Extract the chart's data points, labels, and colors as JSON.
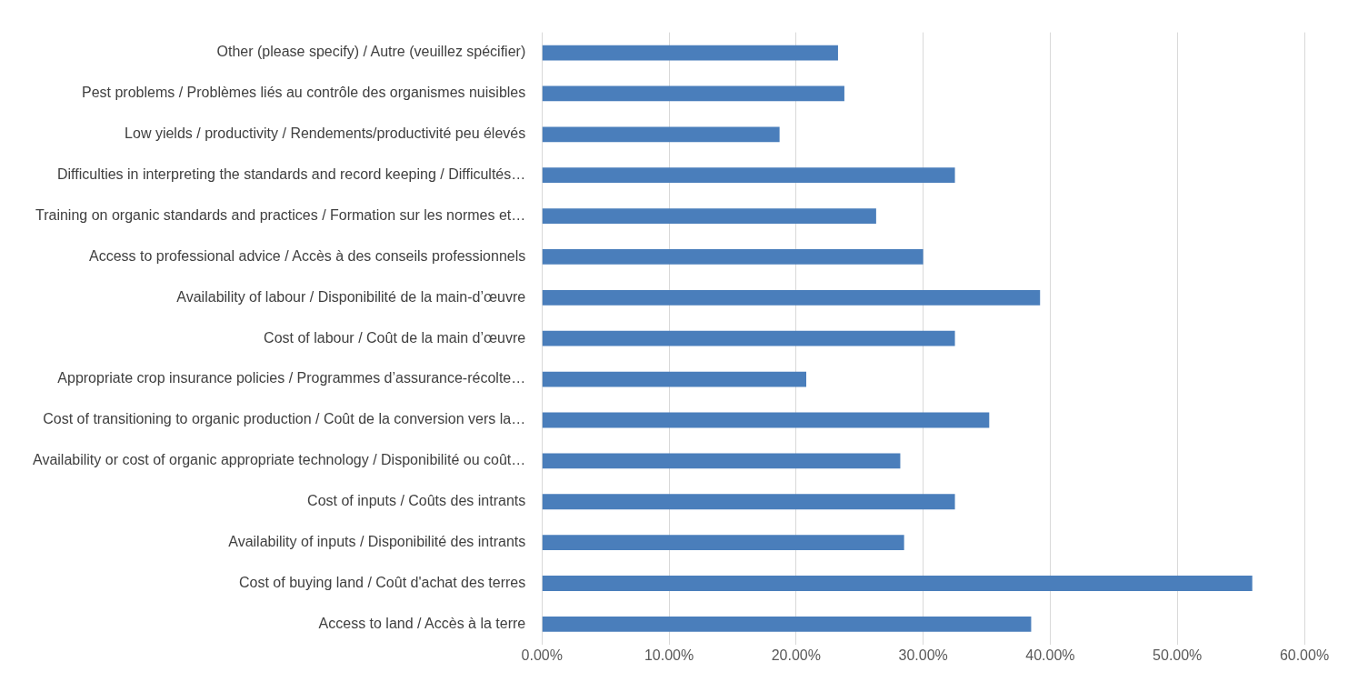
{
  "chart_data": {
    "type": "bar",
    "orientation": "horizontal",
    "categories": [
      "Other (please specify) / Autre (veuillez spécifier)",
      "Pest problems / Problèmes liés au contrôle des organismes nuisibles",
      "Low yields / productivity / Rendements/productivité peu élevés",
      "Difficulties in interpreting the standards and record keeping / Difficultés…",
      "Training on organic standards and practices / Formation sur les normes et…",
      "Access to professional advice / Accès à des conseils professionnels",
      "Availability of labour / Disponibilité de la main-d’œuvre",
      "Cost of labour / Coût de la main d’œuvre",
      "Appropriate crop insurance policies / Programmes d’assurance-récolte…",
      "Cost of transitioning to organic production / Coût de la conversion vers la…",
      "Availability or cost of organic appropriate technology / Disponibilité ou coût…",
      "Cost of inputs / Coûts des intrants",
      "Availability of inputs / Disponibilité des intrants",
      "Cost of buying land / Coût d'achat des terres",
      "Access to land / Accès à la terre"
    ],
    "values": [
      23.3,
      23.8,
      18.7,
      32.5,
      26.3,
      30.0,
      39.2,
      32.5,
      20.8,
      35.2,
      28.2,
      32.5,
      28.5,
      55.9,
      38.5
    ],
    "color": "#4a7ebb",
    "xlim": [
      0,
      60
    ],
    "xticks": [
      {
        "value": 0,
        "label": "0.00%"
      },
      {
        "value": 10,
        "label": "10.00%"
      },
      {
        "value": 20,
        "label": "20.00%"
      },
      {
        "value": 30,
        "label": "30.00%"
      },
      {
        "value": 40,
        "label": "40.00%"
      },
      {
        "value": 50,
        "label": "50.00%"
      },
      {
        "value": 60,
        "label": "60.00%"
      }
    ],
    "grid": "x",
    "legend": false
  }
}
